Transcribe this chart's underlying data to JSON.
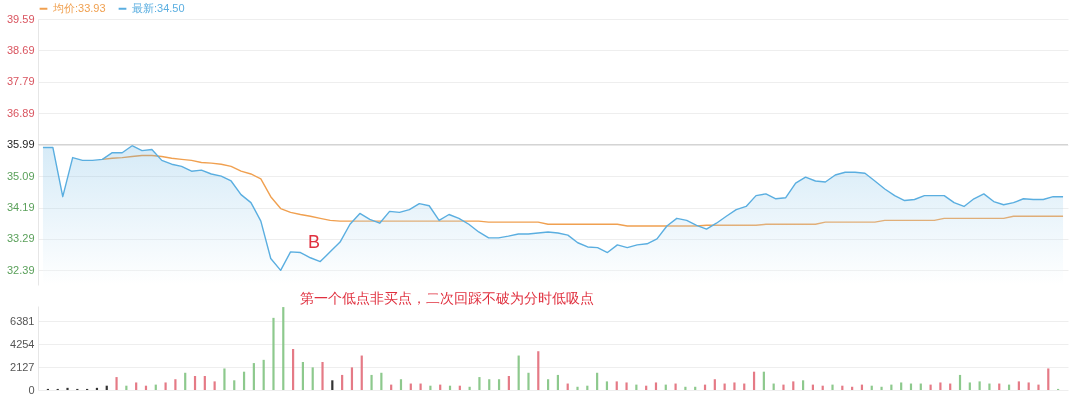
{
  "chart_data": [
    {
      "type": "line",
      "categories": [
        null,
        null,
        null,
        null,
        null,
        null,
        null,
        null,
        null,
        null,
        null,
        null,
        null,
        null,
        null,
        null,
        null,
        null,
        null,
        null,
        null,
        null,
        null,
        null,
        null,
        null,
        null,
        null,
        null,
        null,
        null,
        null,
        null,
        null,
        null,
        null,
        null,
        null,
        null,
        null,
        null,
        null,
        null,
        null,
        null,
        null,
        null,
        null,
        null,
        null,
        null,
        null,
        null,
        null,
        null,
        null,
        null,
        null,
        null,
        null,
        null,
        null,
        null,
        null,
        null,
        null,
        null,
        null,
        null,
        null,
        null,
        null,
        null,
        null,
        null,
        null,
        null,
        null,
        null,
        null,
        null,
        null,
        null,
        null,
        null,
        null,
        null,
        null,
        null,
        null,
        null,
        null,
        null,
        null,
        null,
        null,
        null,
        null,
        null,
        null,
        null,
        null,
        null,
        null
      ],
      "series": [
        {
          "name": "均价:33.93",
          "color": "#f0a050",
          "values": [
            null,
            null,
            null,
            null,
            null,
            null,
            35.57,
            35.6,
            35.62,
            35.65,
            35.68,
            35.68,
            35.65,
            35.6,
            35.57,
            35.54,
            35.48,
            35.46,
            35.43,
            35.37,
            35.23,
            35.15,
            35.01,
            34.5,
            34.16,
            34.05,
            33.99,
            33.94,
            33.88,
            33.82,
            33.8,
            33.8,
            33.8,
            33.8,
            33.8,
            33.8,
            33.8,
            33.8,
            33.8,
            33.8,
            33.8,
            33.8,
            33.8,
            33.8,
            33.8,
            33.77,
            33.77,
            33.77,
            33.77,
            33.77,
            33.77,
            33.71,
            33.71,
            33.71,
            33.71,
            33.71,
            33.71,
            33.71,
            33.71,
            33.66,
            33.66,
            33.66,
            33.66,
            33.66,
            33.66,
            33.66,
            33.66,
            33.68,
            33.68,
            33.68,
            33.68,
            33.68,
            33.68,
            33.71,
            33.71,
            33.71,
            33.71,
            33.71,
            33.71,
            33.77,
            33.77,
            33.77,
            33.77,
            33.77,
            33.77,
            33.82,
            33.82,
            33.82,
            33.82,
            33.82,
            33.82,
            33.88,
            33.88,
            33.88,
            33.88,
            33.88,
            33.88,
            33.88,
            33.94,
            33.94,
            33.94,
            33.94,
            33.94,
            33.94
          ]
        },
        {
          "name": "最新:34.50",
          "type": "area",
          "color": "#5aaee0",
          "values": [
            35.91,
            35.91,
            34.5,
            35.62,
            35.54,
            35.54,
            35.57,
            35.76,
            35.76,
            35.96,
            35.82,
            35.85,
            35.54,
            35.43,
            35.37,
            35.23,
            35.26,
            35.15,
            35.09,
            34.95,
            34.56,
            34.33,
            33.8,
            32.73,
            32.39,
            32.92,
            32.9,
            32.75,
            32.64,
            32.92,
            33.2,
            33.71,
            34.02,
            33.85,
            33.74,
            34.08,
            34.05,
            34.13,
            34.3,
            34.24,
            33.82,
            33.99,
            33.88,
            33.71,
            33.49,
            33.32,
            33.32,
            33.37,
            33.43,
            33.43,
            33.46,
            33.49,
            33.46,
            33.4,
            33.18,
            33.06,
            33.04,
            32.9,
            33.12,
            33.04,
            33.12,
            33.15,
            33.29,
            33.66,
            33.88,
            33.82,
            33.68,
            33.57,
            33.74,
            33.94,
            34.13,
            34.22,
            34.53,
            34.58,
            34.44,
            34.47,
            34.89,
            35.06,
            34.95,
            34.92,
            35.12,
            35.2,
            35.2,
            35.17,
            34.95,
            34.72,
            34.53,
            34.39,
            34.42,
            34.53,
            34.53,
            34.53,
            34.33,
            34.22,
            34.44,
            34.58,
            34.36,
            34.27,
            34.33,
            34.44,
            34.42,
            34.42,
            34.5,
            34.5
          ]
        }
      ],
      "ylim": [
        31.97,
        39.59
      ],
      "yticks": [
        32.39,
        33.29,
        34.19,
        35.09,
        35.99,
        36.89,
        37.79,
        38.69,
        39.59
      ],
      "ref_lines": [
        {
          "axis": "y",
          "value": 35.99,
          "color": "#cccccc"
        }
      ],
      "grid": "y",
      "legend": "top left",
      "tick_labels": "y",
      "annotations": [
        "B",
        "第一个低点非买点，二次回踩不破为分时低吸点"
      ]
    },
    {
      "type": "bar",
      "categories": [
        null,
        null,
        null,
        null,
        null,
        null,
        null,
        null,
        null,
        null,
        null,
        null,
        null,
        null,
        null,
        null,
        null,
        null,
        null,
        null,
        null,
        null,
        null,
        null,
        null,
        null,
        null,
        null,
        null,
        null,
        null,
        null,
        null,
        null,
        null,
        null,
        null,
        null,
        null,
        null,
        null,
        null,
        null,
        null,
        null,
        null,
        null,
        null,
        null,
        null,
        null,
        null,
        null,
        null,
        null,
        null,
        null,
        null,
        null,
        null,
        null,
        null,
        null,
        null,
        null,
        null,
        null,
        null,
        null,
        null,
        null,
        null,
        null,
        null,
        null,
        null,
        null,
        null,
        null,
        null,
        null,
        null,
        null,
        null,
        null,
        null,
        null,
        null,
        null,
        null,
        null,
        null,
        null,
        null,
        null,
        null,
        null,
        null,
        null,
        null,
        null,
        null,
        null,
        null
      ],
      "values": [
        100,
        100,
        200,
        100,
        100,
        200,
        400,
        1200,
        400,
        700,
        400,
        500,
        700,
        1000,
        1600,
        1300,
        1300,
        800,
        2000,
        900,
        1700,
        2500,
        2800,
        6700,
        7700,
        3800,
        2600,
        2100,
        2600,
        900,
        1400,
        2100,
        3200,
        1400,
        1600,
        500,
        1000,
        600,
        600,
        400,
        500,
        400,
        400,
        300,
        1200,
        1000,
        1000,
        1300,
        3200,
        1600,
        3600,
        1000,
        1400,
        600,
        300,
        400,
        1600,
        800,
        800,
        700,
        500,
        400,
        700,
        500,
        600,
        300,
        300,
        500,
        1000,
        600,
        700,
        600,
        1700,
        1700,
        600,
        500,
        800,
        900,
        500,
        400,
        500,
        400,
        300,
        500,
        400,
        300,
        500,
        700,
        600,
        600,
        500,
        700,
        600,
        1400,
        700,
        800,
        600,
        600,
        500,
        800,
        700,
        500,
        2000,
        100
      ],
      "colors": [
        "#333333",
        "#333333",
        "#333333",
        "#333333",
        "#333333",
        "#333333",
        "#333333",
        "#e57a86",
        "#8dc98d",
        "#e57a86",
        "#e57a86",
        "#8dc98d",
        "#e57a86",
        "#e57a86",
        "#8dc98d",
        "#e57a86",
        "#e57a86",
        "#e57a86",
        "#8dc98d",
        "#8dc98d",
        "#8dc98d",
        "#8dc98d",
        "#8dc98d",
        "#8dc98d",
        "#8dc98d",
        "#e57a86",
        "#8dc98d",
        "#8dc98d",
        "#e57a86",
        "#333333",
        "#e57a86",
        "#e57a86",
        "#e57a86",
        "#8dc98d",
        "#8dc98d",
        "#e57a86",
        "#8dc98d",
        "#e57a86",
        "#e57a86",
        "#8dc98d",
        "#e57a86",
        "#8dc98d",
        "#e57a86",
        "#8dc98d",
        "#8dc98d",
        "#8dc98d",
        "#8dc98d",
        "#e57a86",
        "#8dc98d",
        "#8dc98d",
        "#e57a86",
        "#8dc98d",
        "#8dc98d",
        "#e57a86",
        "#8dc98d",
        "#8dc98d",
        "#8dc98d",
        "#8dc98d",
        "#e57a86",
        "#e57a86",
        "#8dc98d",
        "#e57a86",
        "#e57a86",
        "#8dc98d",
        "#e57a86",
        "#8dc98d",
        "#8dc98d",
        "#e57a86",
        "#e57a86",
        "#e57a86",
        "#e57a86",
        "#e57a86",
        "#e57a86",
        "#8dc98d",
        "#8dc98d",
        "#e57a86",
        "#e57a86",
        "#8dc98d",
        "#e57a86",
        "#e57a86",
        "#8dc98d",
        "#e57a86",
        "#e57a86",
        "#e57a86",
        "#8dc98d",
        "#8dc98d",
        "#8dc98d",
        "#8dc98d",
        "#8dc98d",
        "#8dc98d",
        "#e57a86",
        "#e57a86",
        "#e57a86",
        "#8dc98d",
        "#8dc98d",
        "#8dc98d",
        "#8dc98d",
        "#e57a86",
        "#8dc98d",
        "#e57a86",
        "#e57a86",
        "#e57a86",
        "#e57a86",
        "#8dc98d"
      ],
      "ylim": [
        0,
        7800
      ],
      "yticks": [
        0,
        2127,
        4254,
        6381
      ],
      "grid": "y",
      "tick_labels": "y"
    }
  ]
}
